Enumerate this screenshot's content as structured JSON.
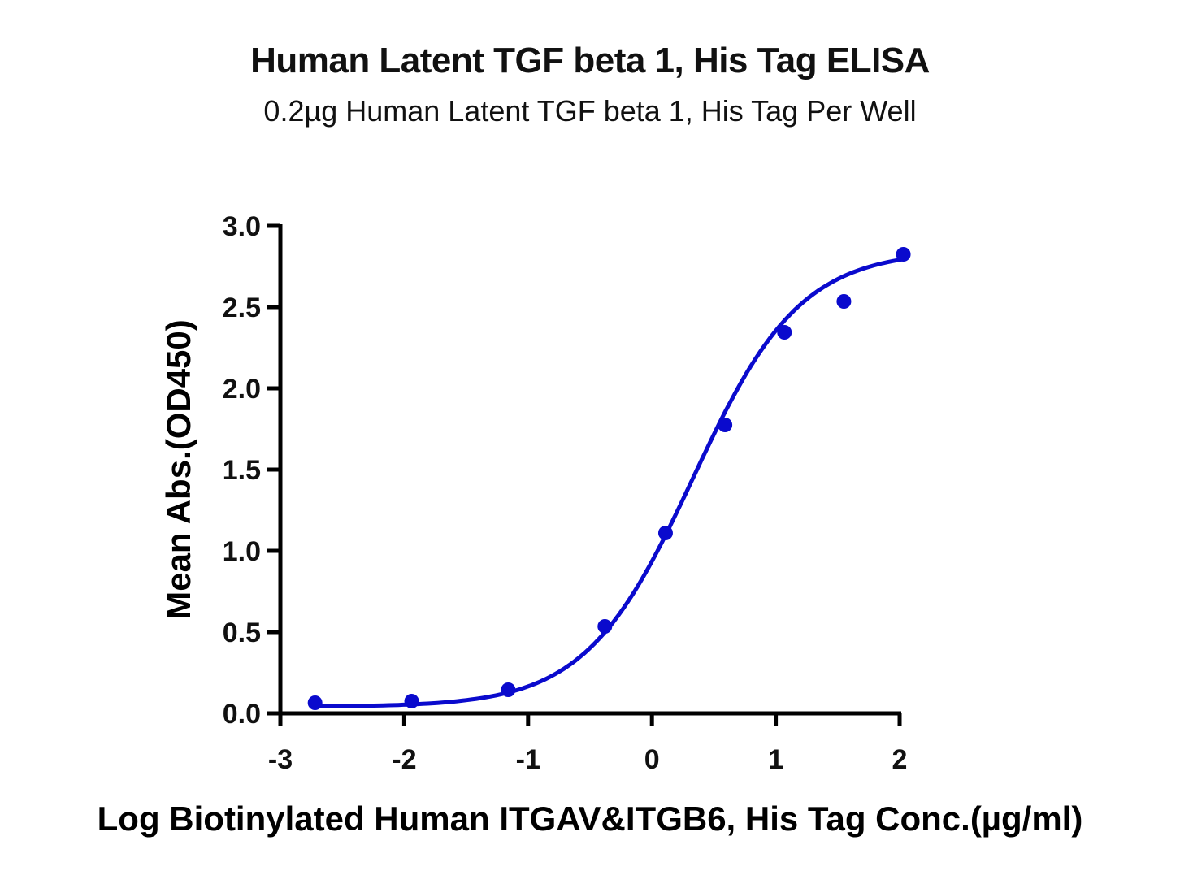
{
  "chart_data": {
    "type": "scatter",
    "title": "Human Latent TGF beta 1, His Tag ELISA",
    "subtitle": "0.2µg Human Latent TGF beta 1, His Tag Per Well",
    "xlabel": "Log Biotinylated Human ITGAV&ITGB6, His Tag Conc.(µg/ml)",
    "ylabel": "Mean Abs.(OD450)",
    "xlim": [
      -3,
      2
    ],
    "ylim": [
      0,
      3.0
    ],
    "x_ticks": [
      "-3",
      "-2",
      "-1",
      "0",
      "1",
      "2"
    ],
    "y_ticks": [
      "0.0",
      "0.5",
      "1.0",
      "1.5",
      "2.0",
      "2.5",
      "3.0"
    ],
    "grid": false,
    "legend": null,
    "series": [
      {
        "name": "Mean Abs.(OD450)",
        "color": "#0A0ACD",
        "marker": "circle",
        "x": [
          -2.72,
          -1.94,
          -1.16,
          -0.38,
          0.11,
          0.59,
          1.07,
          1.55,
          2.03
        ],
        "y": [
          0.065,
          0.075,
          0.145,
          0.535,
          1.11,
          1.775,
          2.345,
          2.535,
          2.825
        ]
      }
    ],
    "fit_curve": {
      "type": "4PL",
      "color": "#0A0ACD",
      "bottom": 0.04,
      "top": 2.85,
      "logEC50": 0.33,
      "hill": 1.0,
      "x_range": [
        -2.72,
        2.02
      ]
    }
  }
}
